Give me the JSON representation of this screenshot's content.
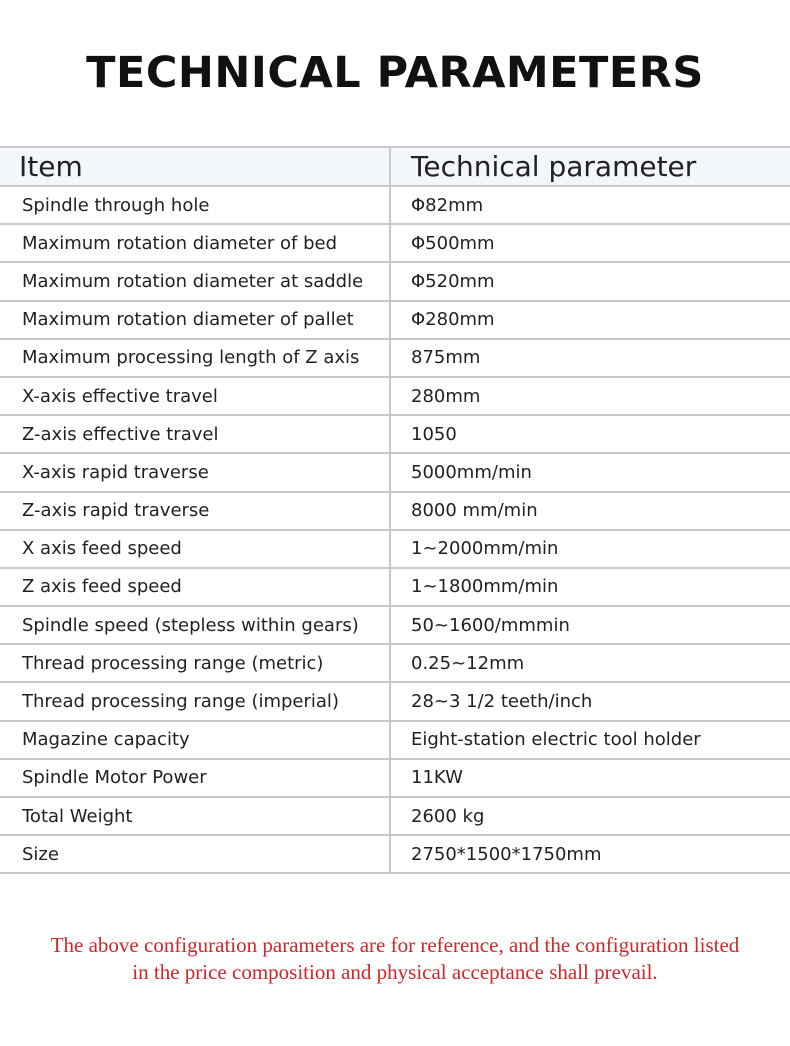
{
  "title": "TECHNICAL PARAMETERS",
  "table": {
    "headers": [
      "Item",
      "Technical parameter"
    ],
    "rows": [
      [
        "Spindle through hole",
        "Φ82mm"
      ],
      [
        "Maximum rotation diameter of bed",
        "Φ500mm"
      ],
      [
        "Maximum rotation diameter at saddle",
        "Φ520mm"
      ],
      [
        "Maximum rotation diameter of pallet",
        "Φ280mm"
      ],
      [
        "Maximum processing length of Z axis",
        "875mm"
      ],
      [
        "X-axis effective travel",
        "280mm"
      ],
      [
        "Z-axis effective travel",
        "1050"
      ],
      [
        "X-axis rapid traverse",
        "5000mm/min"
      ],
      [
        "Z-axis rapid traverse",
        "8000 mm/min"
      ],
      [
        "X axis feed speed",
        "1~2000mm/min"
      ],
      [
        "Z axis feed speed",
        "1~1800mm/min"
      ],
      [
        "Spindle speed (stepless within gears)",
        "50~1600/mmmin"
      ],
      [
        "Thread processing range (metric)",
        "0.25~12mm"
      ],
      [
        "Thread processing range (imperial)",
        "28~3 1/2 teeth/inch"
      ],
      [
        "Magazine capacity",
        "Eight-station electric tool holder"
      ],
      [
        "Spindle Motor Power",
        "11KW"
      ],
      [
        "Total Weight",
        "2600 kg"
      ],
      [
        "Size",
        "2750*1500*1750mm"
      ]
    ]
  },
  "note": {
    "line1": "The above configuration parameters are for reference, and the configuration listed",
    "line2": "in the price composition and physical acceptance shall prevail."
  },
  "colors": {
    "note": "#d0262c",
    "header_bg": "#f3f6fb",
    "border": "#c9c9c9"
  }
}
